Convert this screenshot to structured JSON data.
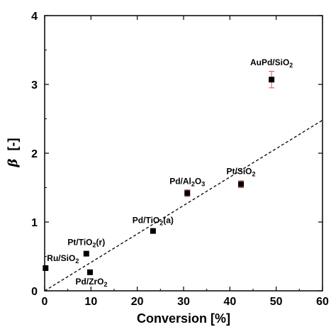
{
  "chart_data": {
    "type": "scatter",
    "xlabel": "Conversion [%]",
    "ylabel_symbol": "β",
    "ylabel_unit": "[-]",
    "xlim": [
      0,
      60
    ],
    "ylim": [
      0,
      4
    ],
    "xticks": [
      0,
      10,
      20,
      30,
      40,
      50,
      60
    ],
    "yticks": [
      0,
      1,
      2,
      3,
      4
    ],
    "grid": false,
    "marker_color": "#000000",
    "errorbar_color": "#d9534f",
    "points": [
      {
        "x": 0.2,
        "y": 0.33,
        "label": "Ru/SiO",
        "sub": "2",
        "suffix": ""
      },
      {
        "x": 9.0,
        "y": 0.54,
        "label": "Pt/TiO",
        "sub": "2",
        "suffix": "(r)"
      },
      {
        "x": 9.8,
        "y": 0.27,
        "label": "Pd/ZrO",
        "sub": "2",
        "suffix": ""
      },
      {
        "x": 23.4,
        "y": 0.87,
        "label": "Pd/TiO",
        "sub": "2",
        "suffix": "(a)"
      },
      {
        "x": 30.8,
        "y": 1.42,
        "label": "Pd/Al",
        "sub": "2",
        "suffix": "O",
        "sub2": "3",
        "yerr": 0.05
      },
      {
        "x": 42.4,
        "y": 1.55,
        "label": "Pt/SiO",
        "sub": "2",
        "suffix": "",
        "yerr": 0.05
      },
      {
        "x": 49.0,
        "y": 3.07,
        "label": "AuPd/SiO",
        "sub": "2",
        "suffix": "",
        "yerr": 0.12
      }
    ],
    "fit_line": {
      "x": [
        0,
        60
      ],
      "y": [
        0,
        2.48
      ],
      "style": "dashed"
    }
  }
}
